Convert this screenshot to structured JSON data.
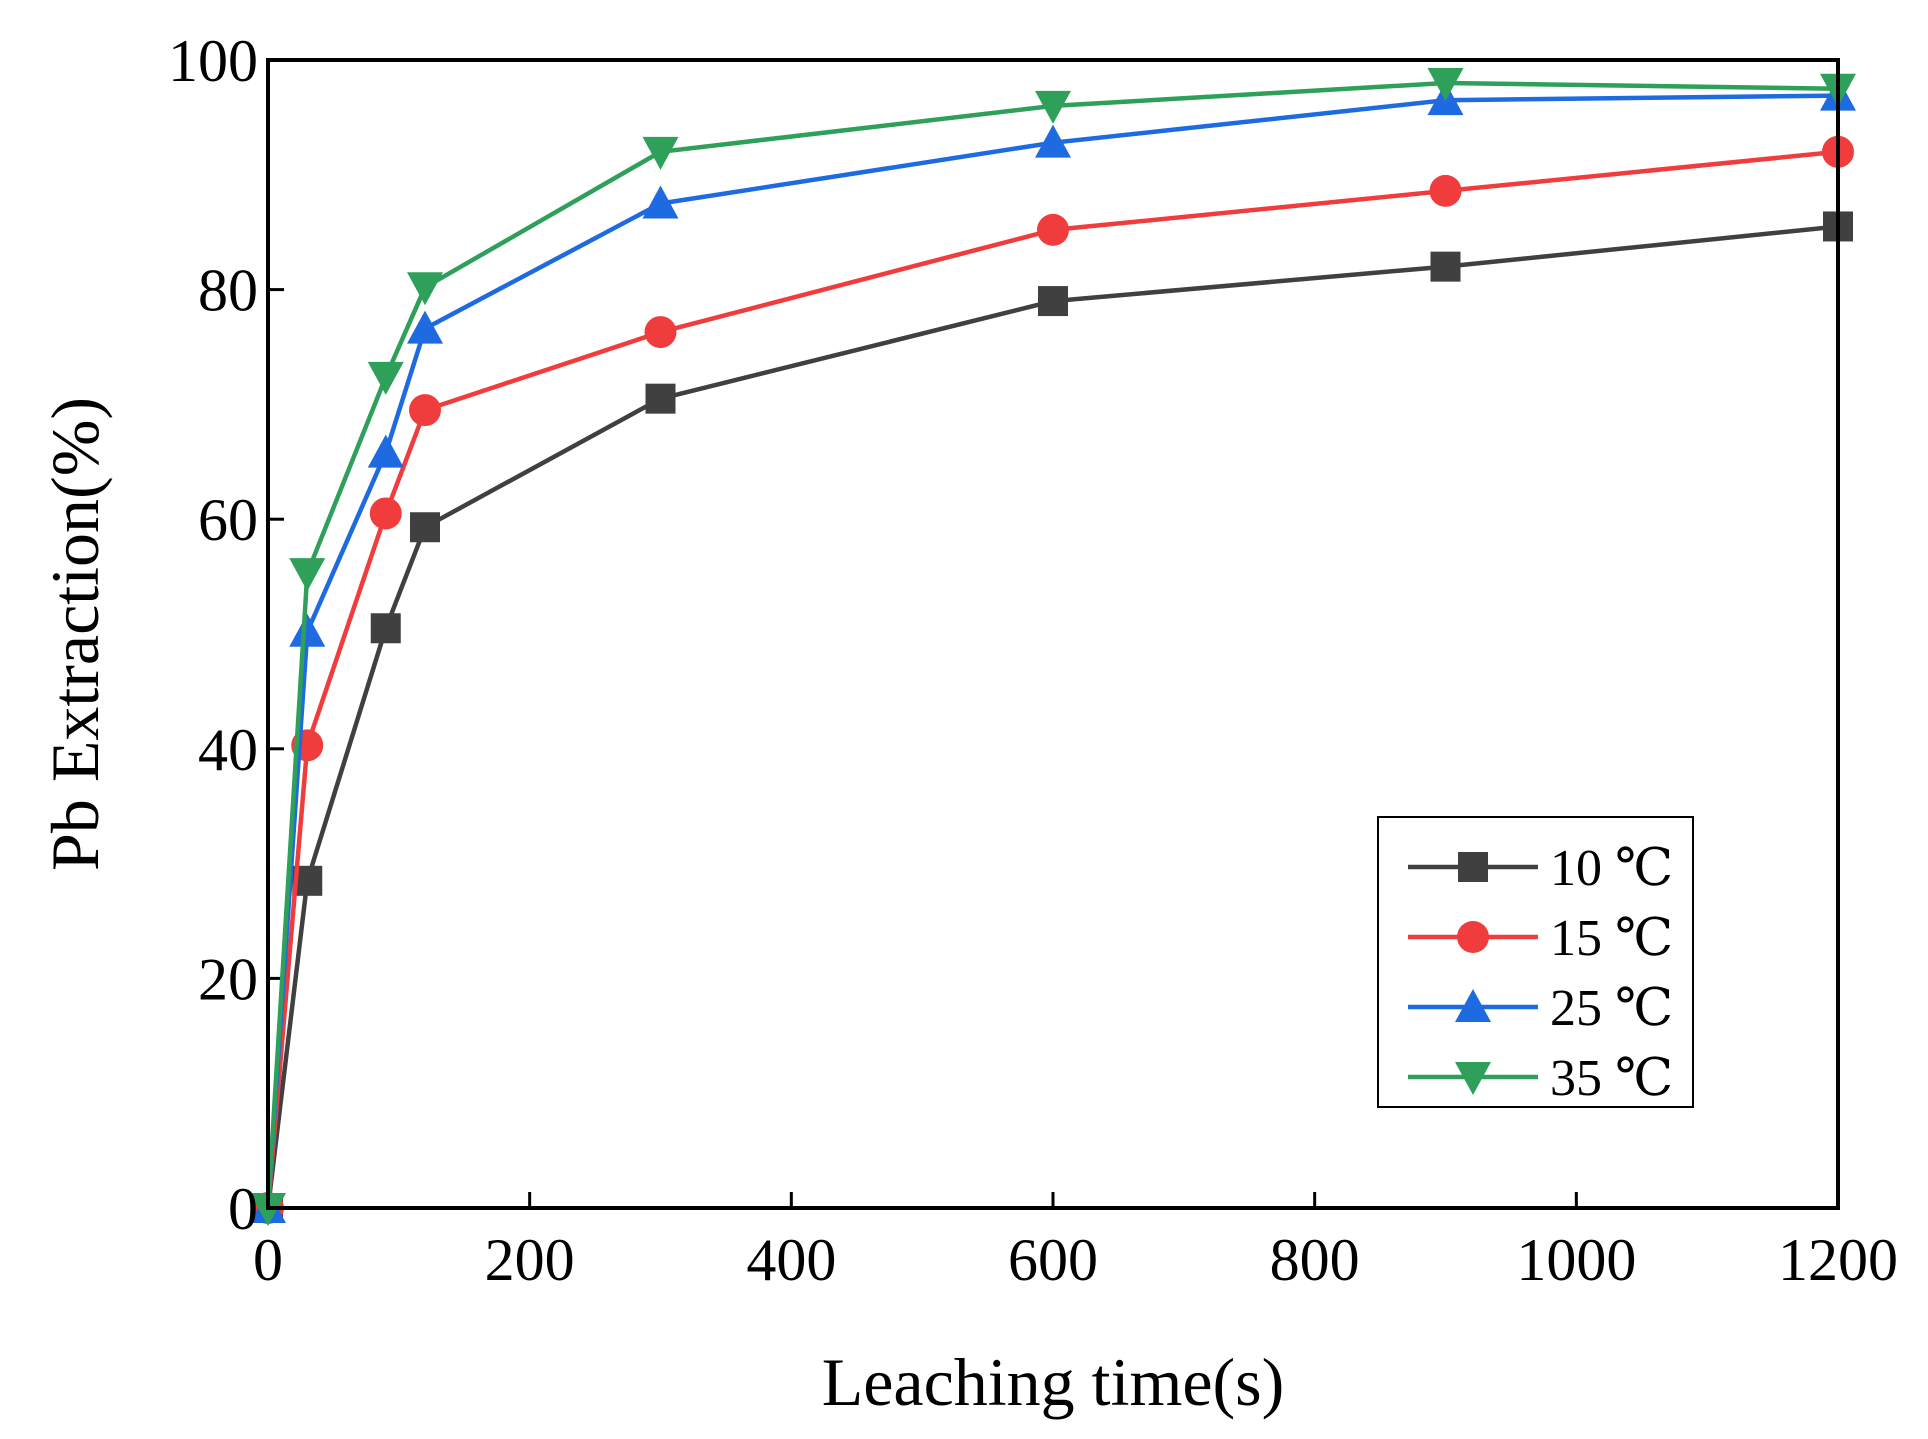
{
  "chart_data": {
    "type": "line",
    "title": "",
    "xlabel": "Leaching time(s)",
    "ylabel": "Pb Extraction(%)",
    "xlim": [
      0,
      1200
    ],
    "ylim": [
      0,
      100
    ],
    "xticks": [
      0,
      200,
      400,
      600,
      800,
      1000,
      1200
    ],
    "yticks": [
      0,
      20,
      40,
      60,
      80,
      100
    ],
    "x": [
      0,
      30,
      90,
      120,
      300,
      600,
      900,
      1200
    ],
    "legend_position": "bottom-right",
    "series": [
      {
        "name": "10 ℃",
        "color": "#404040",
        "marker": "square",
        "values": [
          0,
          28.5,
          50.5,
          59.3,
          70.5,
          79,
          82,
          85.5
        ]
      },
      {
        "name": "15 ℃",
        "color": "#f03c3c",
        "marker": "circle",
        "values": [
          0,
          40.3,
          60.5,
          69.5,
          76.3,
          85.2,
          88.6,
          92
        ]
      },
      {
        "name": "25 ℃",
        "color": "#1e6ae0",
        "marker": "triangle-up",
        "values": [
          0,
          50.2,
          65.8,
          76.6,
          87.5,
          92.8,
          96.5,
          96.9
        ]
      },
      {
        "name": "35 ℃",
        "color": "#2ea05a",
        "marker": "triangle-down",
        "values": [
          0,
          55.3,
          72.4,
          80.2,
          92,
          96,
          98,
          97.5
        ]
      }
    ]
  }
}
